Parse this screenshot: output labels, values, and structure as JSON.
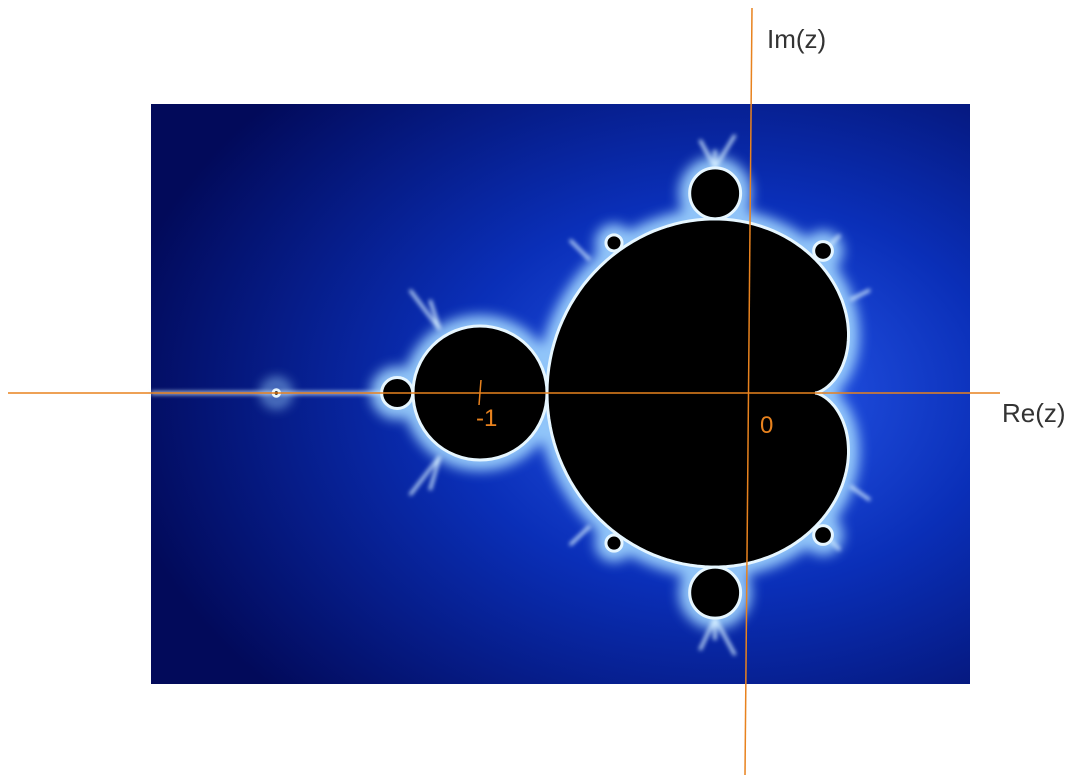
{
  "axes": {
    "y_label": "Im(z)",
    "x_label": "Re(z)",
    "tick_labels": [
      "-1",
      "0"
    ]
  }
}
